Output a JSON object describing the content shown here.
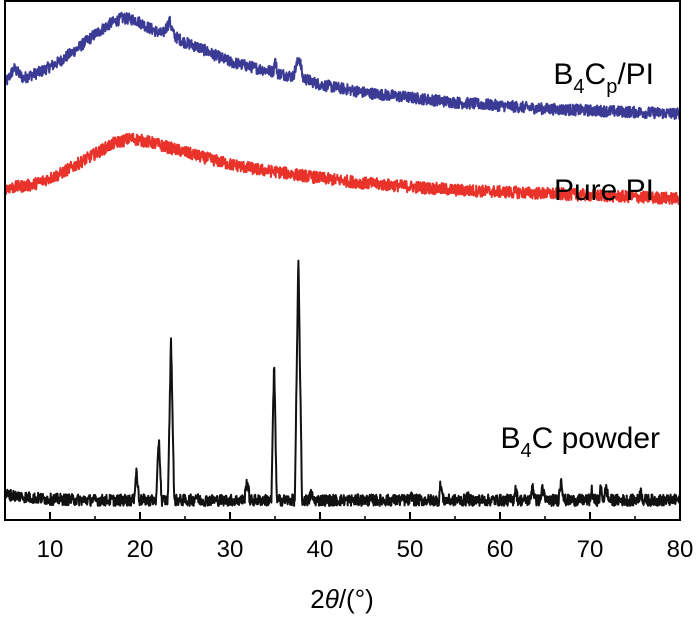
{
  "chart_data": {
    "type": "line",
    "title": "",
    "xlabel": "2θ/(°)",
    "xlabel_prefix": "2",
    "xlabel_theta": "θ",
    "xlabel_suffix": "/(°)",
    "ylabel": "",
    "xlim": [
      5,
      80
    ],
    "x_ticks": [
      10,
      20,
      30,
      40,
      50,
      60,
      70,
      80
    ],
    "x_tick_labels": [
      "10",
      "20",
      "30",
      "40",
      "50",
      "60",
      "70",
      "80"
    ],
    "y_axis_shown": false,
    "grid": false,
    "legend": "inline labels at right",
    "series": [
      {
        "name": "B4Cp/PI",
        "label_parts": {
          "b": "B",
          "sub1": "4",
          "c": "C",
          "sub2": "p",
          "rest": "/PI"
        },
        "color": "#3b3b96",
        "noise": 3.5,
        "values": [
          [
            5.2,
            64
          ],
          [
            6.0,
            72
          ],
          [
            7.0,
            66
          ],
          [
            9,
            70
          ],
          [
            11,
            76
          ],
          [
            13,
            84
          ],
          [
            15,
            93
          ],
          [
            16.5,
            99
          ],
          [
            18,
            103
          ],
          [
            19.5,
            102
          ],
          [
            21,
            97
          ],
          [
            22.5,
            93
          ],
          [
            23.3,
            101
          ],
          [
            23.8,
            92
          ],
          [
            25,
            88
          ],
          [
            26.5,
            85
          ],
          [
            28,
            81
          ],
          [
            30,
            76
          ],
          [
            31.5,
            74
          ],
          [
            33,
            72
          ],
          [
            34.8,
            70
          ],
          [
            35.0,
            77
          ],
          [
            35.3,
            69
          ],
          [
            37,
            67
          ],
          [
            37.7,
            79
          ],
          [
            38.1,
            66
          ],
          [
            40,
            62
          ],
          [
            45,
            57
          ],
          [
            50,
            54
          ],
          [
            55,
            51
          ],
          [
            60,
            49
          ],
          [
            65,
            47
          ],
          [
            70,
            46
          ],
          [
            75,
            45
          ],
          [
            80,
            44
          ]
        ]
      },
      {
        "name": "Pure PI",
        "label_parts": {
          "text": "Pure PI"
        },
        "color": "#e8322a",
        "noise": 3.5,
        "values": [
          [
            5,
            44
          ],
          [
            8,
            46
          ],
          [
            11,
            52
          ],
          [
            13,
            58
          ],
          [
            15,
            64
          ],
          [
            17,
            70
          ],
          [
            19,
            73
          ],
          [
            21,
            71
          ],
          [
            23,
            68
          ],
          [
            25,
            65
          ],
          [
            27,
            62
          ],
          [
            30,
            58
          ],
          [
            33,
            55
          ],
          [
            36,
            53
          ],
          [
            40,
            50
          ],
          [
            45,
            47
          ],
          [
            50,
            45
          ],
          [
            55,
            43
          ],
          [
            60,
            42
          ],
          [
            65,
            41
          ],
          [
            70,
            40
          ],
          [
            75,
            39
          ],
          [
            80,
            38
          ]
        ]
      },
      {
        "name": "B4C powder",
        "label_parts": {
          "b": "B",
          "sub1": "4",
          "rest": "C powder"
        },
        "color": "#111111",
        "noise": 1.2,
        "values": [
          [
            5,
            2.2
          ],
          [
            8,
            1.5
          ],
          [
            10,
            1.2
          ],
          [
            15,
            1.0
          ],
          [
            19.3,
            1.0
          ],
          [
            19.6,
            7.2
          ],
          [
            19.9,
            1.0
          ],
          [
            21.8,
            1.0
          ],
          [
            22.1,
            14
          ],
          [
            22.4,
            1.0
          ],
          [
            23.1,
            1.0
          ],
          [
            23.45,
            35
          ],
          [
            23.8,
            1.0
          ],
          [
            26.0,
            1.0
          ],
          [
            26.2,
            2.0
          ],
          [
            26.5,
            1.0
          ],
          [
            31.6,
            1.0
          ],
          [
            31.9,
            5.5
          ],
          [
            32.2,
            1.0
          ],
          [
            34.6,
            1.0
          ],
          [
            34.9,
            30
          ],
          [
            35.2,
            1.0
          ],
          [
            37.2,
            1.0
          ],
          [
            37.6,
            51
          ],
          [
            38.0,
            1.0
          ],
          [
            38.8,
            1.0
          ],
          [
            39.0,
            2.5
          ],
          [
            39.3,
            1.0
          ],
          [
            50.0,
            1.0
          ],
          [
            50.2,
            2.0
          ],
          [
            50.4,
            1.0
          ],
          [
            53.2,
            1.0
          ],
          [
            53.4,
            4.5
          ],
          [
            53.7,
            1.0
          ],
          [
            56.2,
            1.0
          ],
          [
            56.4,
            1.8
          ],
          [
            56.6,
            1.0
          ],
          [
            61.5,
            1.0
          ],
          [
            61.7,
            3.5
          ],
          [
            62.0,
            1.0
          ],
          [
            63.4,
            1.0
          ],
          [
            63.6,
            4.5
          ],
          [
            63.9,
            1.0
          ],
          [
            64.5,
            1.0
          ],
          [
            64.7,
            4.0
          ],
          [
            65.0,
            1.0
          ],
          [
            66.5,
            1.0
          ],
          [
            66.8,
            5.5
          ],
          [
            67.1,
            1.0
          ],
          [
            70.0,
            1.0
          ],
          [
            70.2,
            3.0
          ],
          [
            70.4,
            1.0
          ],
          [
            71.0,
            1.0
          ],
          [
            71.2,
            3.5
          ],
          [
            71.5,
            1.0
          ],
          [
            71.8,
            3.5
          ],
          [
            72.1,
            1.0
          ],
          [
            75.4,
            1.0
          ],
          [
            75.6,
            3.0
          ],
          [
            75.9,
            1.0
          ],
          [
            80,
            1.0
          ]
        ]
      }
    ]
  }
}
